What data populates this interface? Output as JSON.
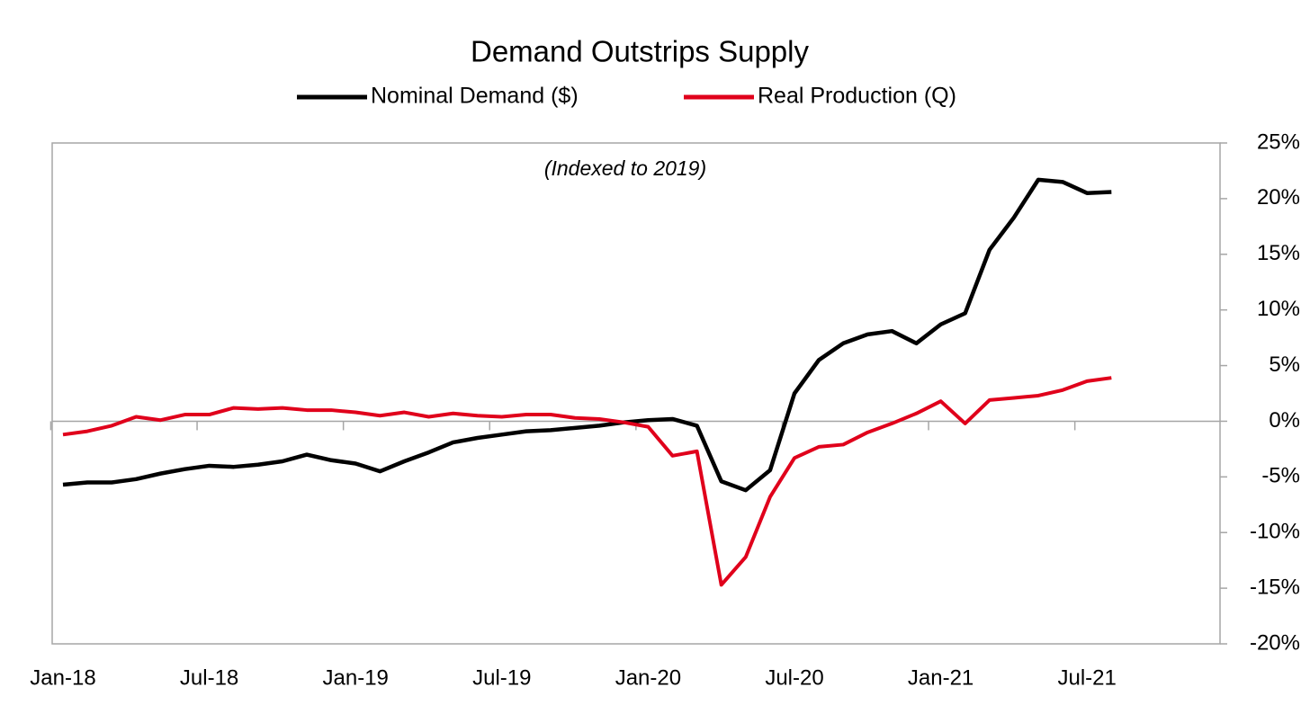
{
  "chart_data": {
    "type": "line",
    "title": "Demand Outstrips Supply",
    "annotation": "(Indexed to 2019)",
    "categories": [
      "Jan-18",
      null,
      null,
      null,
      null,
      null,
      "Jul-18",
      null,
      null,
      null,
      null,
      null,
      "Jan-19",
      null,
      null,
      null,
      null,
      null,
      "Jul-19",
      null,
      null,
      null,
      null,
      null,
      "Jan-20",
      null,
      null,
      null,
      null,
      null,
      "Jul-20",
      null,
      null,
      null,
      null,
      null,
      "Jan-21",
      null,
      null,
      null,
      null,
      null,
      "Jul-21",
      null
    ],
    "series": [
      {
        "name": "Nominal Demand ($)",
        "color": "#000000",
        "values": [
          -5.7,
          -5.5,
          -5.5,
          -5.2,
          -4.7,
          -4.3,
          -4.0,
          -4.1,
          -3.9,
          -3.6,
          -3.0,
          -3.5,
          -3.8,
          -4.5,
          -3.6,
          -2.8,
          -1.9,
          -1.5,
          -1.2,
          -0.9,
          -0.8,
          -0.6,
          -0.4,
          -0.1,
          0.1,
          0.2,
          -0.4,
          -5.4,
          -6.2,
          -4.4,
          2.5,
          5.5,
          7.0,
          7.8,
          8.1,
          7.0,
          8.7,
          9.7,
          15.4,
          18.3,
          21.7,
          21.5,
          20.5,
          20.6
        ]
      },
      {
        "name": "Real Production (Q)",
        "color": "#e0001b",
        "values": [
          -1.2,
          -0.9,
          -0.4,
          0.4,
          0.1,
          0.6,
          0.6,
          1.2,
          1.1,
          1.2,
          1.0,
          1.0,
          0.8,
          0.5,
          0.8,
          0.4,
          0.7,
          0.5,
          0.4,
          0.6,
          0.6,
          0.3,
          0.2,
          -0.1,
          -0.5,
          -3.1,
          -2.7,
          -14.7,
          -12.2,
          -6.8,
          -3.3,
          -2.3,
          -2.1,
          -1.0,
          -0.2,
          0.7,
          1.8,
          -0.2,
          1.9,
          2.1,
          2.3,
          2.8,
          3.6,
          3.9
        ]
      }
    ],
    "ylim": [
      -20,
      25
    ],
    "yticks": [
      {
        "value": -20,
        "label": "-20%"
      },
      {
        "value": -15,
        "label": "-15%"
      },
      {
        "value": -10,
        "label": "-10%"
      },
      {
        "value": -5,
        "label": "-5%"
      },
      {
        "value": 0,
        "label": "0%"
      },
      {
        "value": 5,
        "label": "5%"
      },
      {
        "value": 10,
        "label": "10%"
      },
      {
        "value": 15,
        "label": "15%"
      },
      {
        "value": 20,
        "label": "20%"
      },
      {
        "value": 25,
        "label": "25%"
      }
    ],
    "y_axis_side": "right",
    "grid": false
  }
}
